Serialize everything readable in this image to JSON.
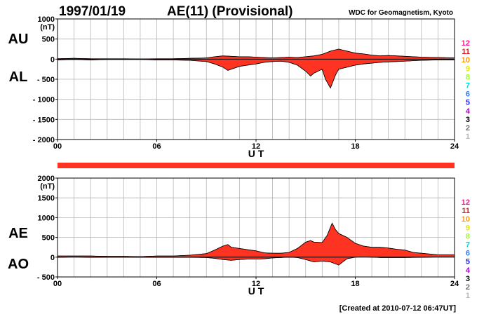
{
  "header": {
    "date": "1997/01/19",
    "title": "AE(11) (Provisional)",
    "source": "WDC for Geomagnetism, Kyoto"
  },
  "footer": {
    "created": "[Created at 2010-07-12 06:47UT]"
  },
  "station_counts": [
    "12",
    "11",
    "10",
    "9",
    "8",
    "7",
    "6",
    "5",
    "4",
    "3",
    "2",
    "1"
  ],
  "station_count_colors": [
    "#ff1493",
    "#e8101a",
    "#ff9900",
    "#e6e600",
    "#99ff33",
    "#00d8d8",
    "#2a7dff",
    "#2222ff",
    "#b000d0",
    "#000000",
    "#707070",
    "#b8b8b8"
  ],
  "fill_color": "#ff3322",
  "chart_data": [
    {
      "type": "area",
      "labels": {
        "upper": "AU",
        "lower": "AL"
      },
      "ylabel": "(nT)",
      "xlabel": "U T",
      "ylim": [
        -2000,
        1000
      ],
      "yticks": [
        1000,
        500,
        0,
        -500,
        -1000,
        -1500,
        -2000
      ],
      "ytick_labels": [
        "1000",
        "500",
        "0",
        "- 500",
        "- 1000",
        "- 1500",
        "- 2000"
      ],
      "xlim": [
        0,
        24
      ],
      "xticks": [
        0,
        6,
        12,
        18,
        24
      ],
      "xtick_labels": [
        "00",
        "06",
        "12",
        "18",
        "24"
      ],
      "series": [
        {
          "name": "AU",
          "x": [
            0,
            1,
            2,
            3,
            4,
            5,
            6,
            7,
            8,
            9,
            9.5,
            10,
            10.5,
            11,
            11.5,
            12,
            12.5,
            13,
            13.5,
            14,
            14.5,
            15,
            15.5,
            16,
            16.5,
            17,
            17.5,
            18,
            18.5,
            19,
            19.5,
            20,
            20.5,
            21,
            21.5,
            22,
            23,
            24
          ],
          "y": [
            10,
            20,
            10,
            10,
            10,
            5,
            10,
            10,
            20,
            30,
            60,
            80,
            70,
            60,
            60,
            50,
            40,
            30,
            40,
            50,
            40,
            60,
            80,
            120,
            200,
            250,
            200,
            150,
            130,
            100,
            80,
            90,
            80,
            70,
            60,
            50,
            40,
            30
          ]
        },
        {
          "name": "AL",
          "x": [
            0,
            1,
            2,
            3,
            4,
            5,
            6,
            7,
            8,
            9,
            9.5,
            10,
            10.3,
            10.5,
            11,
            11.5,
            12,
            12.5,
            13,
            13.5,
            14,
            14.5,
            15,
            15.3,
            15.5,
            16,
            16.2,
            16.5,
            16.8,
            17,
            17.5,
            18,
            18.5,
            19,
            19.5,
            20,
            20.5,
            21,
            21.5,
            22,
            23,
            24
          ],
          "y": [
            -20,
            -10,
            -20,
            -10,
            -10,
            -10,
            -20,
            -20,
            -30,
            -60,
            -120,
            -200,
            -280,
            -250,
            -180,
            -150,
            -120,
            -80,
            -60,
            -50,
            -80,
            -150,
            -300,
            -420,
            -350,
            -250,
            -500,
            -720,
            -400,
            -250,
            -200,
            -150,
            -120,
            -100,
            -80,
            -70,
            -60,
            -50,
            -40,
            -30,
            -20,
            -20
          ]
        }
      ]
    },
    {
      "type": "area",
      "labels": {
        "upper": "AE",
        "lower": "AO"
      },
      "ylabel": "(nT)",
      "xlabel": "U T",
      "ylim": [
        -500,
        2000
      ],
      "yticks": [
        2000,
        1500,
        1000,
        500,
        0,
        -500
      ],
      "ytick_labels": [
        "2000",
        "1500",
        "1000",
        "500",
        "0",
        "- 500"
      ],
      "xlim": [
        0,
        24
      ],
      "xticks": [
        0,
        6,
        12,
        18,
        24
      ],
      "xtick_labels": [
        "00",
        "06",
        "12",
        "18",
        "24"
      ],
      "series": [
        {
          "name": "AE",
          "x": [
            0,
            1,
            2,
            3,
            4,
            5,
            6,
            7,
            8,
            9,
            9.5,
            10,
            10.3,
            10.5,
            11,
            11.5,
            12,
            12.5,
            13,
            13.5,
            14,
            14.5,
            15,
            15.3,
            15.5,
            16,
            16.3,
            16.6,
            16.8,
            17,
            17.5,
            18,
            18.5,
            19,
            19.5,
            20,
            20.5,
            21,
            21.5,
            22,
            23,
            24
          ],
          "y": [
            30,
            30,
            30,
            20,
            20,
            15,
            30,
            30,
            50,
            90,
            180,
            280,
            320,
            250,
            220,
            190,
            160,
            110,
            100,
            100,
            120,
            220,
            380,
            420,
            380,
            370,
            550,
            860,
            700,
            600,
            500,
            350,
            280,
            250,
            250,
            230,
            200,
            180,
            120,
            100,
            60,
            60
          ]
        },
        {
          "name": "AO",
          "x": [
            0,
            1,
            2,
            3,
            4,
            5,
            6,
            7,
            8,
            9,
            9.5,
            10,
            10.5,
            11,
            11.5,
            12,
            12.5,
            13,
            13.5,
            14,
            14.5,
            15,
            15.5,
            16,
            16.5,
            17,
            17.5,
            18,
            18.5,
            19,
            19.5,
            20,
            21,
            22,
            23,
            24
          ],
          "y": [
            -5,
            5,
            -5,
            0,
            0,
            -2,
            -5,
            -5,
            -5,
            -10,
            -30,
            -60,
            -80,
            -60,
            -50,
            -50,
            -40,
            -20,
            -10,
            0,
            -10,
            -60,
            -120,
            -100,
            -120,
            -200,
            -40,
            0,
            5,
            0,
            -10,
            -10,
            -10,
            -5,
            5,
            5
          ]
        }
      ]
    }
  ]
}
